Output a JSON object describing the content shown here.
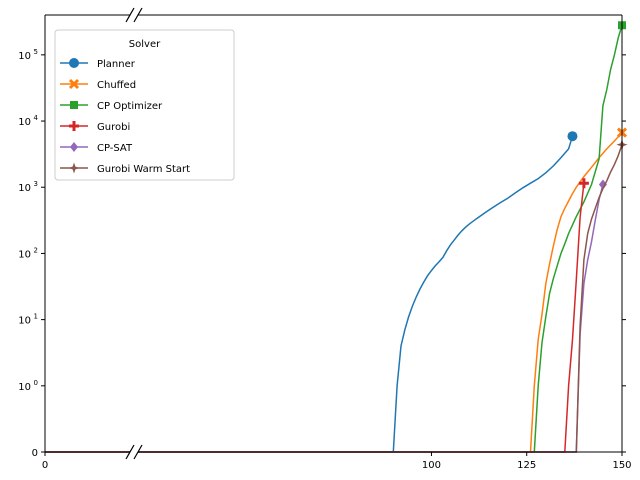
{
  "chart_data": {
    "type": "line",
    "title": "",
    "xlabel": "",
    "ylabel": "",
    "xscale": "broken-linear",
    "yscale": "symlog",
    "x_segments": [
      [
        0,
        20
      ],
      [
        23,
        150
      ]
    ],
    "x_ticks": [
      {
        "value": 0,
        "label": "0"
      },
      {
        "value": 100,
        "label": "100"
      },
      {
        "value": 125,
        "label": "125"
      },
      {
        "value": 150,
        "label": "150"
      }
    ],
    "ylim": [
      0,
      400000
    ],
    "y_ticks": [
      {
        "value": 0,
        "label": "0",
        "exp": ""
      },
      {
        "value": 1,
        "label": "10",
        "exp": "0"
      },
      {
        "value": 10,
        "label": "10",
        "exp": "1"
      },
      {
        "value": 100,
        "label": "10",
        "exp": "2"
      },
      {
        "value": 1000,
        "label": "10",
        "exp": "3"
      },
      {
        "value": 10000,
        "label": "10",
        "exp": "4"
      },
      {
        "value": 100000,
        "label": "10",
        "exp": "5"
      }
    ],
    "legend": {
      "title": "Solver",
      "placement": "upper-left"
    },
    "series": [
      {
        "name": "Planner",
        "color": "#1f77b4",
        "marker": "circle",
        "points": [
          [
            0,
            0
          ],
          [
            20,
            0
          ],
          [
            23,
            0
          ],
          [
            90,
            0
          ],
          [
            91,
            1
          ],
          [
            92,
            4
          ],
          [
            93,
            7
          ],
          [
            94,
            11
          ],
          [
            95,
            16
          ],
          [
            96,
            22
          ],
          [
            97,
            29
          ],
          [
            98,
            37
          ],
          [
            99,
            46
          ],
          [
            100,
            55
          ],
          [
            101,
            65
          ],
          [
            102,
            75
          ],
          [
            103,
            87
          ],
          [
            104,
            110
          ],
          [
            105,
            135
          ],
          [
            106,
            160
          ],
          [
            107,
            190
          ],
          [
            108,
            220
          ],
          [
            109,
            250
          ],
          [
            110,
            280
          ],
          [
            112,
            340
          ],
          [
            114,
            410
          ],
          [
            116,
            490
          ],
          [
            118,
            580
          ],
          [
            120,
            680
          ],
          [
            122,
            820
          ],
          [
            124,
            980
          ],
          [
            126,
            1150
          ],
          [
            128,
            1350
          ],
          [
            130,
            1650
          ],
          [
            132,
            2100
          ],
          [
            134,
            2800
          ],
          [
            136,
            3800
          ],
          [
            137,
            5900
          ]
        ]
      },
      {
        "name": "Chuffed",
        "color": "#ff7f0e",
        "marker": "x",
        "points": [
          [
            0,
            0
          ],
          [
            20,
            0
          ],
          [
            23,
            0
          ],
          [
            126,
            0
          ],
          [
            127,
            1
          ],
          [
            128,
            5
          ],
          [
            129,
            12
          ],
          [
            130,
            35
          ],
          [
            131,
            70
          ],
          [
            132,
            130
          ],
          [
            133,
            230
          ],
          [
            134,
            360
          ],
          [
            135,
            480
          ],
          [
            136,
            620
          ],
          [
            137,
            800
          ],
          [
            138,
            1000
          ],
          [
            140,
            1450
          ],
          [
            142,
            2000
          ],
          [
            144,
            2800
          ],
          [
            146,
            3800
          ],
          [
            148,
            5000
          ],
          [
            150,
            6700
          ]
        ]
      },
      {
        "name": "CP Optimizer",
        "color": "#2ca02c",
        "marker": "square",
        "points": [
          [
            0,
            0
          ],
          [
            20,
            0
          ],
          [
            23,
            0
          ],
          [
            127,
            0
          ],
          [
            128,
            1
          ],
          [
            129,
            4.5
          ],
          [
            130,
            11
          ],
          [
            131,
            25
          ],
          [
            132,
            42
          ],
          [
            133,
            65
          ],
          [
            134,
            100
          ],
          [
            135,
            140
          ],
          [
            136,
            200
          ],
          [
            137,
            270
          ],
          [
            138,
            360
          ],
          [
            140,
            600
          ],
          [
            142,
            1100
          ],
          [
            144,
            2700
          ],
          [
            145,
            17000
          ],
          [
            146,
            30000
          ],
          [
            147,
            60000
          ],
          [
            148,
            100000
          ],
          [
            149,
            180000
          ],
          [
            150,
            280000
          ]
        ]
      },
      {
        "name": "Gurobi",
        "color": "#d62728",
        "marker": "plus",
        "points": [
          [
            0,
            0
          ],
          [
            20,
            0
          ],
          [
            23,
            0
          ],
          [
            135,
            0
          ],
          [
            136,
            1
          ],
          [
            137,
            5
          ],
          [
            138,
            40
          ],
          [
            139,
            350
          ],
          [
            140,
            1150
          ]
        ]
      },
      {
        "name": "CP-SAT",
        "color": "#9467bd",
        "marker": "diamond",
        "points": [
          [
            0,
            0
          ],
          [
            20,
            0
          ],
          [
            23,
            0
          ],
          [
            138,
            0
          ],
          [
            139,
            6
          ],
          [
            140,
            35
          ],
          [
            141,
            80
          ],
          [
            142,
            150
          ],
          [
            143,
            320
          ],
          [
            144,
            650
          ],
          [
            145,
            1100
          ]
        ]
      },
      {
        "name": "Gurobi Warm Start",
        "color": "#8c564b",
        "marker": "star",
        "points": [
          [
            0,
            0
          ],
          [
            20,
            0
          ],
          [
            23,
            0
          ],
          [
            138,
            0
          ],
          [
            139,
            8
          ],
          [
            140,
            80
          ],
          [
            141,
            200
          ],
          [
            142,
            330
          ],
          [
            143,
            480
          ],
          [
            144,
            700
          ],
          [
            145,
            950
          ],
          [
            146,
            1250
          ],
          [
            147,
            1700
          ],
          [
            148,
            2200
          ],
          [
            149,
            3000
          ],
          [
            150,
            4400
          ]
        ]
      }
    ]
  }
}
